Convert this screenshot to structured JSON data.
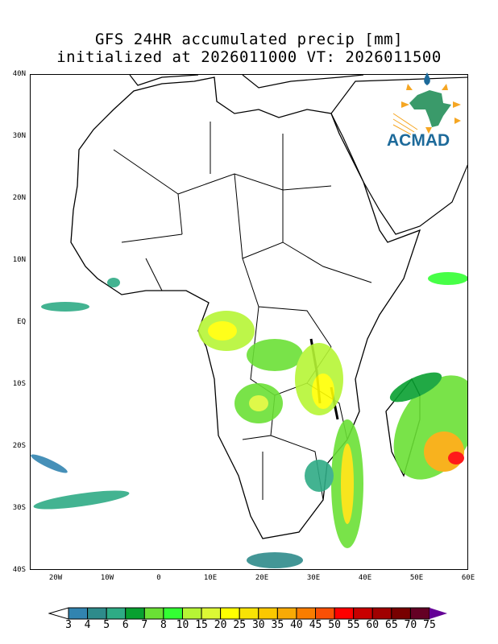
{
  "title": {
    "line1": "GFS 24HR accumulated precip [mm]",
    "line2": "initialized at 2026011000 VT: 2026011500"
  },
  "lat_labels": [
    "40N",
    "30N",
    "20N",
    "10N",
    "EQ",
    "10S",
    "20S",
    "30S",
    "40S"
  ],
  "lon_labels": [
    "20W",
    "10W",
    "0",
    "10E",
    "20E",
    "30E",
    "40E",
    "50E",
    "60E"
  ],
  "logo": {
    "text": "ACMAD"
  },
  "colorbar": {
    "labels": [
      "3",
      "4",
      "5",
      "6",
      "7",
      "8",
      "10",
      "15",
      "20",
      "25",
      "30",
      "35",
      "40",
      "45",
      "50",
      "55",
      "60",
      "65",
      "70",
      "75"
    ],
    "colors": [
      "#3284b0",
      "#2e8b8b",
      "#2eab85",
      "#08a030",
      "#6ae035",
      "#33ff33",
      "#b6f535",
      "#dcf835",
      "#ffff00",
      "#f8e305",
      "#fbc800",
      "#f8aa05",
      "#fa7d00",
      "#fa5005",
      "#ff0000",
      "#c80000",
      "#a00000",
      "#780000",
      "#640024"
    ],
    "under_color": "#ffffff",
    "over_color": "#640096"
  }
}
